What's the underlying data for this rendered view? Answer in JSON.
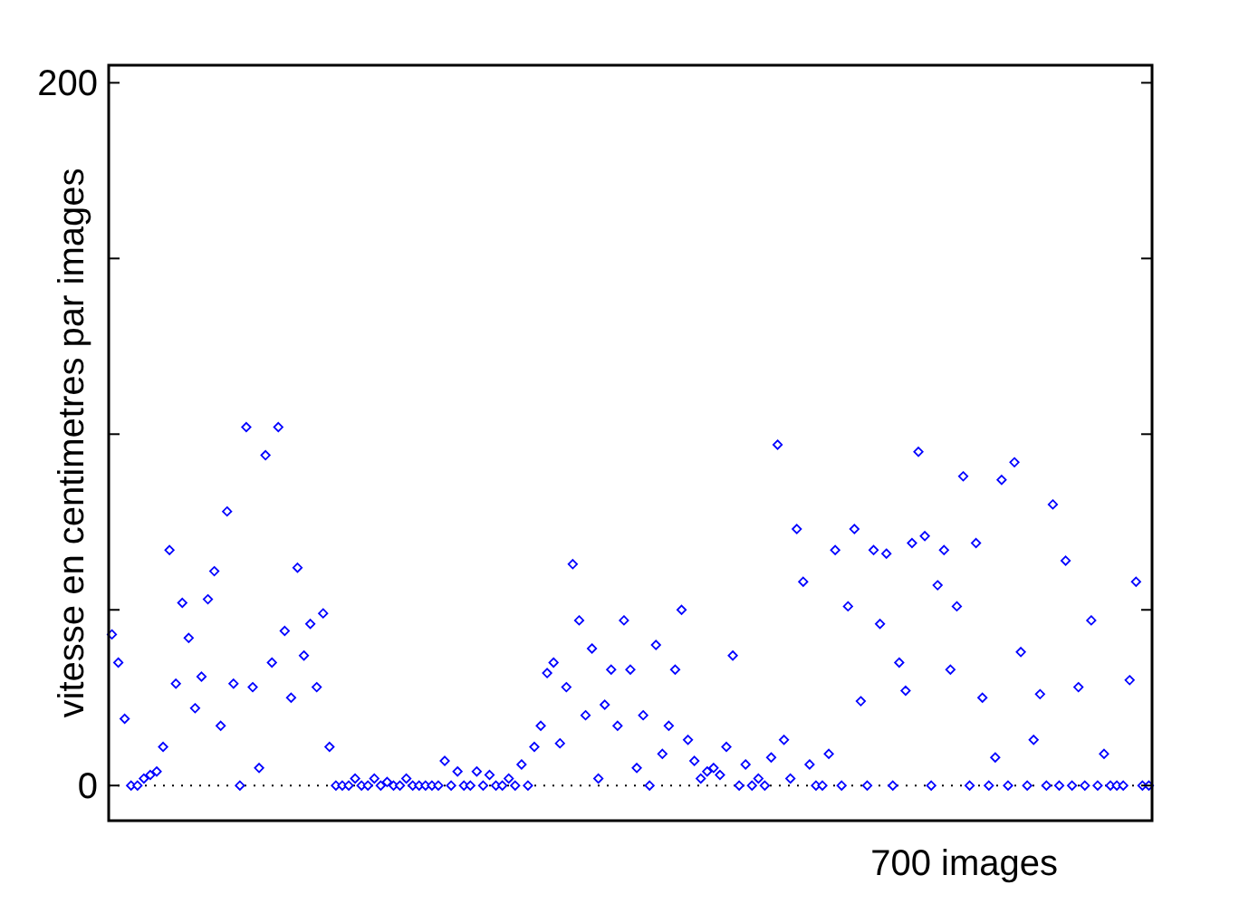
{
  "chart_data": {
    "type": "scatter",
    "ylabel": "vitesse en centimetres par images",
    "xlabel": "700 images",
    "categories": [
      null,
      null,
      null,
      null,
      null,
      null,
      null,
      null,
      null,
      null,
      null,
      null,
      null,
      null,
      null,
      null,
      null,
      null,
      null,
      null,
      null,
      null,
      null,
      null,
      null,
      null,
      null,
      null,
      null,
      null,
      null,
      null,
      null,
      null,
      null,
      null,
      null,
      null,
      null,
      null,
      null,
      null,
      null,
      null,
      null,
      null,
      null,
      null,
      null,
      null,
      null,
      null,
      null,
      null,
      null,
      null,
      null,
      null,
      null,
      null,
      null,
      null,
      null,
      null,
      null,
      null,
      null,
      null,
      null,
      null,
      null,
      null,
      null,
      null,
      null,
      null,
      null,
      null,
      null,
      null,
      null,
      null,
      null,
      null,
      null,
      null,
      null,
      null,
      null,
      null,
      null,
      null,
      null,
      null,
      null,
      null,
      null,
      null,
      null,
      null,
      null,
      null,
      null,
      null,
      null,
      null,
      null,
      null,
      null,
      null,
      null,
      null,
      null,
      null,
      null,
      null,
      null,
      null,
      null,
      null,
      null,
      null,
      null,
      null,
      null,
      null,
      null,
      null,
      null,
      null,
      null,
      null,
      null,
      null,
      null,
      null,
      null,
      null,
      null,
      null,
      null,
      null,
      null,
      null,
      null,
      null,
      null,
      null,
      null,
      null,
      null,
      null,
      null,
      null,
      null,
      null,
      null,
      null,
      null,
      null,
      null,
      null,
      null
    ],
    "series": [
      {
        "color": "#0000ff",
        "values": [
          43,
          35,
          19,
          0,
          0,
          2,
          3,
          4,
          11,
          67,
          29,
          52,
          42,
          22,
          31,
          53,
          61,
          17,
          78,
          29,
          0,
          102,
          28,
          5,
          94,
          35,
          102,
          44,
          25,
          62,
          37,
          46,
          28,
          49,
          11,
          0,
          0,
          0,
          2,
          0,
          0,
          2,
          0,
          1,
          0,
          0,
          2,
          0,
          0,
          0,
          0,
          0,
          7,
          0,
          4,
          0,
          0,
          4,
          0,
          3,
          0,
          0,
          2,
          0,
          6,
          0,
          11,
          17,
          32,
          35,
          12,
          28,
          63,
          47,
          20,
          39,
          2,
          23,
          33,
          17,
          47,
          33,
          5,
          20,
          0,
          40,
          9,
          17,
          33,
          50,
          13,
          7,
          2,
          4,
          5,
          3,
          11,
          37,
          0,
          6,
          0,
          2,
          0,
          8,
          97,
          13,
          2,
          73,
          58,
          6,
          0,
          0,
          9,
          67,
          0,
          51,
          73,
          24,
          0,
          67,
          46,
          66,
          0,
          35,
          27,
          69,
          95,
          71,
          0,
          57,
          67,
          33,
          51,
          88,
          0,
          69,
          25,
          0,
          8,
          87,
          0,
          92,
          38,
          0,
          13,
          26,
          0,
          80,
          0,
          64,
          0,
          28,
          0,
          47,
          0,
          9,
          0,
          0,
          0,
          30,
          58,
          0,
          0
        ]
      }
    ],
    "ylim": [
      -10,
      205
    ],
    "yticks": [
      0,
      {
        "value": 50,
        "label": null
      },
      {
        "value": 100,
        "label": null
      },
      {
        "value": 150,
        "label": null
      },
      200
    ],
    "marker": "diamond",
    "ref_lines": [
      {
        "axis": "y",
        "value": 0,
        "line_style": "dotted",
        "color": "#000000"
      }
    ]
  }
}
